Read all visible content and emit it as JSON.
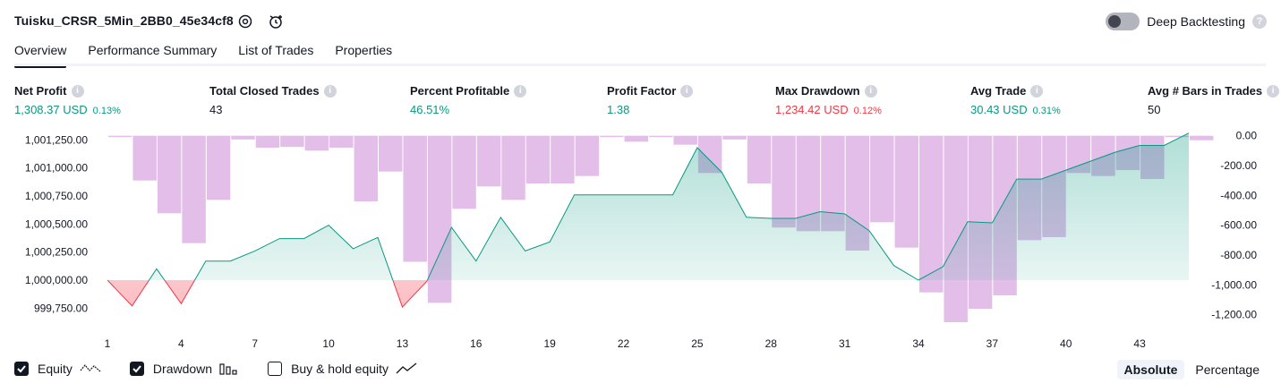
{
  "header": {
    "title": "Tuisku_CRSR_5Min_2BB0_45e34cf8",
    "deep_backtesting_label": "Deep Backtesting",
    "deep_backtesting_enabled": false,
    "help_glyph": "?"
  },
  "tabs": [
    {
      "label": "Overview",
      "active": true
    },
    {
      "label": "Performance Summary",
      "active": false
    },
    {
      "label": "List of Trades",
      "active": false
    },
    {
      "label": "Properties",
      "active": false
    }
  ],
  "metrics": [
    {
      "label": "Net Profit",
      "value": "1,308.37 USD",
      "pct": "0.13%",
      "color": "#089981"
    },
    {
      "label": "Total Closed Trades",
      "value": "43",
      "pct": "",
      "color": "#131722"
    },
    {
      "label": "Percent Profitable",
      "value": "46.51%",
      "pct": "",
      "color": "#089981"
    },
    {
      "label": "Profit Factor",
      "value": "1.38",
      "pct": "",
      "color": "#089981"
    },
    {
      "label": "Max Drawdown",
      "value": "1,234.42 USD",
      "pct": "0.12%",
      "color": "#f23645"
    },
    {
      "label": "Avg Trade",
      "value": "30.43 USD",
      "pct": "0.31%",
      "color": "#089981"
    },
    {
      "label": "Avg # Bars in Trades",
      "value": "50",
      "pct": "",
      "color": "#131722"
    }
  ],
  "info_glyph": "i",
  "chart_data": {
    "type": "line",
    "x_ticks": [
      1,
      4,
      7,
      10,
      13,
      16,
      19,
      22,
      25,
      28,
      31,
      34,
      37,
      40,
      43
    ],
    "x_range": [
      1,
      44
    ],
    "equity": {
      "name": "Equity",
      "baseline": 1000000.0,
      "ylim": [
        999625,
        1001300
      ],
      "y_ticks": [
        "1,001,250.00",
        "1,001,000.00",
        "1,000,750.00",
        "1,000,500.00",
        "1,000,250.00",
        "1,000,000.00",
        "999,750.00"
      ],
      "y_tick_values": [
        1001250,
        1001000,
        1000750,
        1000500,
        1000250,
        1000000,
        999750
      ],
      "up_color": "#089981",
      "down_color": "#f23645",
      "points": [
        [
          1,
          1000000
        ],
        [
          2,
          999770
        ],
        [
          3,
          1000100
        ],
        [
          4,
          999790
        ],
        [
          5,
          1000170
        ],
        [
          6,
          1000170
        ],
        [
          7,
          1000260
        ],
        [
          8,
          1000370
        ],
        [
          9,
          1000370
        ],
        [
          10,
          1000490
        ],
        [
          11,
          1000280
        ],
        [
          12,
          1000380
        ],
        [
          13,
          999760
        ],
        [
          14,
          999990
        ],
        [
          15,
          1000470
        ],
        [
          16,
          1000170
        ],
        [
          17,
          1000560
        ],
        [
          18,
          1000260
        ],
        [
          19,
          1000340
        ],
        [
          20,
          1000760
        ],
        [
          21,
          1000760
        ],
        [
          22,
          1000760
        ],
        [
          23,
          1000760
        ],
        [
          24,
          1000760
        ],
        [
          25,
          1001180
        ],
        [
          26,
          1000960
        ],
        [
          27,
          1000560
        ],
        [
          28,
          1000550
        ],
        [
          29,
          1000550
        ],
        [
          30,
          1000610
        ],
        [
          31,
          1000590
        ],
        [
          32,
          1000440
        ],
        [
          33,
          1000130
        ],
        [
          34,
          1000000
        ],
        [
          35,
          1000120
        ],
        [
          36,
          1000520
        ],
        [
          37,
          1000510
        ],
        [
          38,
          1000900
        ],
        [
          39,
          1000900
        ],
        [
          40,
          1000980
        ],
        [
          41,
          1001060
        ],
        [
          42,
          1001140
        ],
        [
          43,
          1001200
        ],
        [
          44,
          1001200
        ],
        [
          45,
          1001310
        ]
      ]
    },
    "drawdown": {
      "name": "Drawdown",
      "ylim": [
        -1250,
        10
      ],
      "y_ticks": [
        "0.00",
        "-200.00",
        "-400.00",
        "-600.00",
        "-800.00",
        "-1,000.00",
        "-1,200.00"
      ],
      "y_tick_values": [
        0,
        -200,
        -400,
        -600,
        -800,
        -1000,
        -1200
      ],
      "color": "#ce93d8",
      "bars": [
        [
          1,
          0
        ],
        [
          2,
          -300
        ],
        [
          3,
          -520
        ],
        [
          4,
          -720
        ],
        [
          5,
          -430
        ],
        [
          6,
          -25
        ],
        [
          7,
          -80
        ],
        [
          8,
          -75
        ],
        [
          9,
          -100
        ],
        [
          10,
          -80
        ],
        [
          11,
          -440
        ],
        [
          12,
          -240
        ],
        [
          13,
          -845
        ],
        [
          14,
          -1120
        ],
        [
          15,
          -490
        ],
        [
          16,
          -340
        ],
        [
          17,
          -430
        ],
        [
          18,
          -320
        ],
        [
          19,
          -320
        ],
        [
          20,
          -270
        ],
        [
          21,
          -2
        ],
        [
          22,
          -40
        ],
        [
          23,
          0
        ],
        [
          24,
          -60
        ],
        [
          25,
          -250
        ],
        [
          26,
          -25
        ],
        [
          27,
          -320
        ],
        [
          28,
          -615
        ],
        [
          29,
          -640
        ],
        [
          30,
          -640
        ],
        [
          31,
          -770
        ],
        [
          32,
          -580
        ],
        [
          33,
          -750
        ],
        [
          34,
          -1050
        ],
        [
          35,
          -1250
        ],
        [
          36,
          -1160
        ],
        [
          37,
          -1070
        ],
        [
          38,
          -700
        ],
        [
          39,
          -680
        ],
        [
          40,
          -250
        ],
        [
          41,
          -270
        ],
        [
          42,
          -230
        ],
        [
          43,
          -290
        ],
        [
          44,
          0
        ],
        [
          45,
          -30
        ]
      ]
    }
  },
  "legend": [
    {
      "label": "Equity",
      "checked": true,
      "icon": "equity-line-icon"
    },
    {
      "label": "Drawdown",
      "checked": true,
      "icon": "drawdown-bars-icon"
    },
    {
      "label": "Buy & hold equity",
      "checked": false,
      "icon": "buy-hold-line-icon"
    }
  ],
  "modes": [
    {
      "label": "Absolute",
      "active": true
    },
    {
      "label": "Percentage",
      "active": false
    }
  ]
}
